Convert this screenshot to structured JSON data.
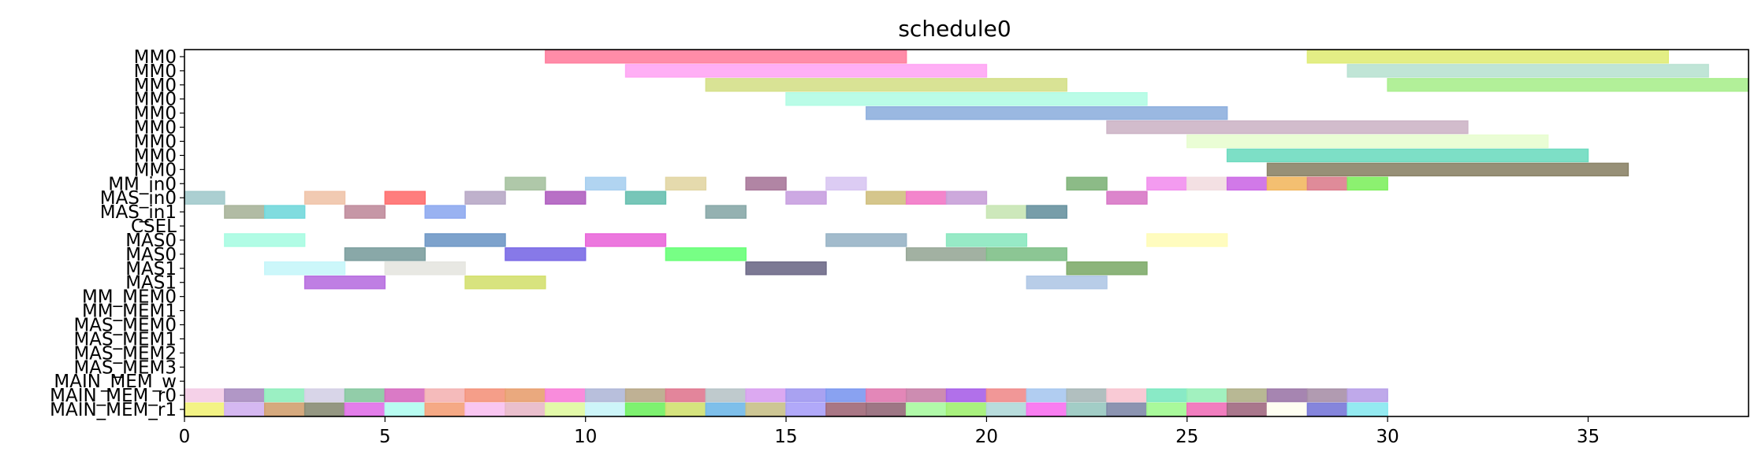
{
  "chart_data": {
    "type": "gantt",
    "title": "schedule0",
    "xlabel": "",
    "ylabel": "",
    "xlim": [
      0,
      39
    ],
    "xticks": [
      0,
      5,
      10,
      15,
      20,
      25,
      30,
      35
    ],
    "grid": false,
    "rows": [
      "MM0",
      "MM0",
      "MM0",
      "MM0",
      "MM0",
      "MM0",
      "MM0",
      "MM0",
      "MM0",
      "MM_in0",
      "MAS_in0",
      "MAS_in1",
      "CSEL",
      "MAS0",
      "MAS0",
      "MAS1",
      "MAS1",
      "MM_MEM0",
      "MM_MEM1",
      "MAS_MEM0",
      "MAS_MEM1",
      "MAS_MEM2",
      "MAS_MEM3",
      "MAIN_MEM_w",
      "MAIN_MEM_r0",
      "MAIN_MEM_r1"
    ],
    "tasks": [
      {
        "row": 0,
        "start": 9,
        "end": 18,
        "color": "#ff7f9e"
      },
      {
        "row": 0,
        "start": 28,
        "end": 37,
        "color": "#e0ec78"
      },
      {
        "row": 1,
        "start": 11,
        "end": 20,
        "color": "#ffa6f4"
      },
      {
        "row": 1,
        "start": 29,
        "end": 38,
        "color": "#b9e2d2"
      },
      {
        "row": 2,
        "start": 13,
        "end": 22,
        "color": "#d5e08a"
      },
      {
        "row": 2,
        "start": 30,
        "end": 39,
        "color": "#aaee8e"
      },
      {
        "row": 3,
        "start": 15,
        "end": 24,
        "color": "#b2fce4"
      },
      {
        "row": 4,
        "start": 17,
        "end": 26,
        "color": "#8fb0de"
      },
      {
        "row": 5,
        "start": 23,
        "end": 32,
        "color": "#cdb5c7"
      },
      {
        "row": 6,
        "start": 25,
        "end": 34,
        "color": "#e8fdd0"
      },
      {
        "row": 7,
        "start": 26,
        "end": 35,
        "color": "#6fdbc0"
      },
      {
        "row": 8,
        "start": 27,
        "end": 36,
        "color": "#8c8468"
      },
      {
        "row": 9,
        "start": 8,
        "end": 9,
        "color": "#a6c2a0"
      },
      {
        "row": 9,
        "start": 10,
        "end": 11,
        "color": "#a8cff0"
      },
      {
        "row": 9,
        "start": 12,
        "end": 13,
        "color": "#e2d6a4"
      },
      {
        "row": 9,
        "start": 14,
        "end": 15,
        "color": "#a8789a"
      },
      {
        "row": 9,
        "start": 16,
        "end": 17,
        "color": "#d8c6f2"
      },
      {
        "row": 9,
        "start": 22,
        "end": 23,
        "color": "#80b47a"
      },
      {
        "row": 9,
        "start": 24,
        "end": 25,
        "color": "#f290ee"
      },
      {
        "row": 9,
        "start": 25,
        "end": 26,
        "color": "#f2dde0"
      },
      {
        "row": 9,
        "start": 26,
        "end": 27,
        "color": "#cc6ae6"
      },
      {
        "row": 9,
        "start": 27,
        "end": 28,
        "color": "#f2b862"
      },
      {
        "row": 9,
        "start": 28,
        "end": 29,
        "color": "#dc7e8e"
      },
      {
        "row": 9,
        "start": 29,
        "end": 30,
        "color": "#80f060"
      },
      {
        "row": 10,
        "start": 0,
        "end": 1,
        "color": "#a2cacc"
      },
      {
        "row": 10,
        "start": 3,
        "end": 4,
        "color": "#f0c4aa"
      },
      {
        "row": 10,
        "start": 5,
        "end": 6,
        "color": "#ff6f6f"
      },
      {
        "row": 10,
        "start": 7,
        "end": 8,
        "color": "#b8a8c6"
      },
      {
        "row": 10,
        "start": 9,
        "end": 10,
        "color": "#b060c0"
      },
      {
        "row": 10,
        "start": 11,
        "end": 12,
        "color": "#68c0b0"
      },
      {
        "row": 10,
        "start": 15,
        "end": 16,
        "color": "#c8a0e0"
      },
      {
        "row": 10,
        "start": 17,
        "end": 18,
        "color": "#d0c080"
      },
      {
        "row": 10,
        "start": 18,
        "end": 19,
        "color": "#f278c6"
      },
      {
        "row": 10,
        "start": 19,
        "end": 20,
        "color": "#c8a0d8"
      },
      {
        "row": 10,
        "start": 23,
        "end": 24,
        "color": "#d878c6"
      },
      {
        "row": 11,
        "start": 1,
        "end": 2,
        "color": "#a8b49a"
      },
      {
        "row": 11,
        "start": 2,
        "end": 3,
        "color": "#72d8dc"
      },
      {
        "row": 11,
        "start": 4,
        "end": 5,
        "color": "#c08c9c"
      },
      {
        "row": 11,
        "start": 6,
        "end": 7,
        "color": "#8eaaf0"
      },
      {
        "row": 11,
        "start": 13,
        "end": 14,
        "color": "#88a8a8"
      },
      {
        "row": 11,
        "start": 20,
        "end": 21,
        "color": "#c8e6b4"
      },
      {
        "row": 11,
        "start": 21,
        "end": 22,
        "color": "#6892a0"
      },
      {
        "row": 13,
        "start": 1,
        "end": 3,
        "color": "#a8fce2"
      },
      {
        "row": 13,
        "start": 6,
        "end": 8,
        "color": "#6f98c6"
      },
      {
        "row": 13,
        "start": 10,
        "end": 12,
        "color": "#ea68da"
      },
      {
        "row": 13,
        "start": 16,
        "end": 18,
        "color": "#98b4c6"
      },
      {
        "row": 13,
        "start": 19,
        "end": 21,
        "color": "#8ce8c0"
      },
      {
        "row": 13,
        "start": 24,
        "end": 26,
        "color": "#fffcb8"
      },
      {
        "row": 14,
        "start": 4,
        "end": 6,
        "color": "#7c9e9e"
      },
      {
        "row": 14,
        "start": 8,
        "end": 10,
        "color": "#7a6ae6"
      },
      {
        "row": 14,
        "start": 12,
        "end": 14,
        "color": "#68ff78"
      },
      {
        "row": 14,
        "start": 18,
        "end": 20,
        "color": "#98a898"
      },
      {
        "row": 14,
        "start": 20,
        "end": 22,
        "color": "#80c088"
      },
      {
        "row": 15,
        "start": 2,
        "end": 4,
        "color": "#c6f6fa"
      },
      {
        "row": 15,
        "start": 5,
        "end": 7,
        "color": "#e6e6e0"
      },
      {
        "row": 15,
        "start": 14,
        "end": 16,
        "color": "#6e6a88"
      },
      {
        "row": 15,
        "start": 22,
        "end": 24,
        "color": "#80ac6c"
      },
      {
        "row": 16,
        "start": 3,
        "end": 5,
        "color": "#b870e0"
      },
      {
        "row": 16,
        "start": 7,
        "end": 9,
        "color": "#d4e070"
      },
      {
        "row": 16,
        "start": 21,
        "end": 23,
        "color": "#b0c8e6"
      },
      {
        "row": 24,
        "start": 0,
        "end": 1,
        "color": "#f4cce6"
      },
      {
        "row": 24,
        "start": 1,
        "end": 2,
        "color": "#a88cc0"
      },
      {
        "row": 24,
        "start": 2,
        "end": 3,
        "color": "#90eebc"
      },
      {
        "row": 24,
        "start": 3,
        "end": 4,
        "color": "#d4d0e6"
      },
      {
        "row": 24,
        "start": 4,
        "end": 5,
        "color": "#86c8a0"
      },
      {
        "row": 24,
        "start": 5,
        "end": 6,
        "color": "#d66cc0"
      },
      {
        "row": 24,
        "start": 6,
        "end": 7,
        "color": "#f4b4b4"
      },
      {
        "row": 24,
        "start": 7,
        "end": 8,
        "color": "#f4947c"
      },
      {
        "row": 24,
        "start": 8,
        "end": 9,
        "color": "#e8a070"
      },
      {
        "row": 24,
        "start": 9,
        "end": 10,
        "color": "#f880d8"
      },
      {
        "row": 24,
        "start": 10,
        "end": 11,
        "color": "#b0b8d8"
      },
      {
        "row": 24,
        "start": 11,
        "end": 12,
        "color": "#b8a888"
      },
      {
        "row": 24,
        "start": 12,
        "end": 13,
        "color": "#e07890"
      },
      {
        "row": 24,
        "start": 13,
        "end": 14,
        "color": "#b8c4c8"
      },
      {
        "row": 24,
        "start": 14,
        "end": 15,
        "color": "#d8a0f0"
      },
      {
        "row": 24,
        "start": 15,
        "end": 16,
        "color": "#a098f0"
      },
      {
        "row": 24,
        "start": 16,
        "end": 17,
        "color": "#7c98f0"
      },
      {
        "row": 24,
        "start": 17,
        "end": 18,
        "color": "#e07ab0"
      },
      {
        "row": 24,
        "start": 18,
        "end": 19,
        "color": "#c880a8"
      },
      {
        "row": 24,
        "start": 19,
        "end": 20,
        "color": "#a860e8"
      },
      {
        "row": 24,
        "start": 20,
        "end": 21,
        "color": "#f08c8c"
      },
      {
        "row": 24,
        "start": 21,
        "end": 22,
        "color": "#a8c8f0"
      },
      {
        "row": 24,
        "start": 22,
        "end": 23,
        "color": "#a8b8b8"
      },
      {
        "row": 24,
        "start": 23,
        "end": 24,
        "color": "#f8c4d0"
      },
      {
        "row": 24,
        "start": 24,
        "end": 25,
        "color": "#7ce8c0"
      },
      {
        "row": 24,
        "start": 25,
        "end": 26,
        "color": "#98f0b8"
      },
      {
        "row": 24,
        "start": 26,
        "end": 27,
        "color": "#b0b088"
      },
      {
        "row": 24,
        "start": 27,
        "end": 28,
        "color": "#9c78a8"
      },
      {
        "row": 24,
        "start": 28,
        "end": 29,
        "color": "#a890a8"
      },
      {
        "row": 24,
        "start": 29,
        "end": 30,
        "color": "#b8a0e8"
      },
      {
        "row": 25,
        "start": 0,
        "end": 1,
        "color": "#f2f278"
      },
      {
        "row": 25,
        "start": 1,
        "end": 2,
        "color": "#d0b0f0"
      },
      {
        "row": 25,
        "start": 2,
        "end": 3,
        "color": "#d0a070"
      },
      {
        "row": 25,
        "start": 3,
        "end": 4,
        "color": "#888c74"
      },
      {
        "row": 25,
        "start": 4,
        "end": 5,
        "color": "#e070e8"
      },
      {
        "row": 25,
        "start": 5,
        "end": 6,
        "color": "#b0fcf0"
      },
      {
        "row": 25,
        "start": 6,
        "end": 7,
        "color": "#f4a078"
      },
      {
        "row": 25,
        "start": 7,
        "end": 8,
        "color": "#f8c0f0"
      },
      {
        "row": 25,
        "start": 8,
        "end": 9,
        "color": "#e8b8c8"
      },
      {
        "row": 25,
        "start": 9,
        "end": 10,
        "color": "#e0f8a0"
      },
      {
        "row": 25,
        "start": 10,
        "end": 11,
        "color": "#c8f4f8"
      },
      {
        "row": 25,
        "start": 11,
        "end": 12,
        "color": "#70f060"
      },
      {
        "row": 25,
        "start": 12,
        "end": 13,
        "color": "#d0e070"
      },
      {
        "row": 25,
        "start": 13,
        "end": 14,
        "color": "#70b8e8"
      },
      {
        "row": 25,
        "start": 14,
        "end": 15,
        "color": "#c8c088"
      },
      {
        "row": 25,
        "start": 15,
        "end": 16,
        "color": "#a8a0f8"
      },
      {
        "row": 25,
        "start": 16,
        "end": 17,
        "color": "#a06878"
      },
      {
        "row": 25,
        "start": 17,
        "end": 18,
        "color": "#946878"
      },
      {
        "row": 25,
        "start": 18,
        "end": 19,
        "color": "#a8f8a0"
      },
      {
        "row": 25,
        "start": 19,
        "end": 20,
        "color": "#a0f070"
      },
      {
        "row": 25,
        "start": 20,
        "end": 21,
        "color": "#b0d8d8"
      },
      {
        "row": 25,
        "start": 21,
        "end": 22,
        "color": "#f870f0"
      },
      {
        "row": 25,
        "start": 22,
        "end": 23,
        "color": "#98c8c0"
      },
      {
        "row": 25,
        "start": 23,
        "end": 24,
        "color": "#8088a8"
      },
      {
        "row": 25,
        "start": 24,
        "end": 25,
        "color": "#a0f890"
      },
      {
        "row": 25,
        "start": 25,
        "end": 26,
        "color": "#f070b8"
      },
      {
        "row": 25,
        "start": 26,
        "end": 27,
        "color": "#a06880"
      },
      {
        "row": 25,
        "start": 27,
        "end": 28,
        "color": "#fefef0"
      },
      {
        "row": 25,
        "start": 28,
        "end": 29,
        "color": "#7878d8"
      },
      {
        "row": 25,
        "start": 29,
        "end": 30,
        "color": "#88e8f0"
      }
    ]
  }
}
